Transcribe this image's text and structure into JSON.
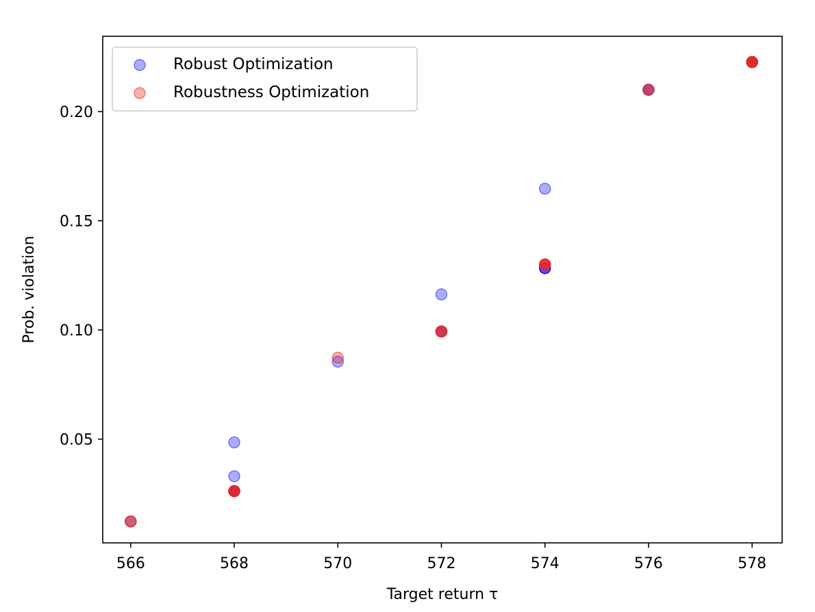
{
  "chart_data": {
    "type": "scatter",
    "xlabel": "Target return τ",
    "ylabel": "Prob. violation",
    "xlim": [
      565.46,
      578.58
    ],
    "ylim": [
      0.0025,
      0.2345
    ],
    "xticks": [
      566,
      568,
      570,
      572,
      574,
      576,
      578
    ],
    "xtick_labels": [
      "566",
      "568",
      "570",
      "572",
      "574",
      "576",
      "578"
    ],
    "yticks": [
      0.05,
      0.1,
      0.15,
      0.2
    ],
    "ytick_labels": [
      "0.05",
      "0.10",
      "0.15",
      "0.20"
    ],
    "grid": false,
    "legend_position": "upper-left",
    "series": [
      {
        "name": "Robust Optimization",
        "color": "#0000ff",
        "alpha": 0.32,
        "points": [
          {
            "x": 566,
            "y": 0.0123
          },
          {
            "x": 568,
            "y": 0.0485
          },
          {
            "x": 568,
            "y": 0.033
          },
          {
            "x": 568,
            "y": 0.0262
          },
          {
            "x": 568,
            "y": 0.0262
          },
          {
            "x": 568,
            "y": 0.0262
          },
          {
            "x": 570,
            "y": 0.0855
          },
          {
            "x": 572,
            "y": 0.1163
          },
          {
            "x": 572,
            "y": 0.0993
          },
          {
            "x": 572,
            "y": 0.0993
          },
          {
            "x": 574,
            "y": 0.1647
          },
          {
            "x": 574,
            "y": 0.1283
          },
          {
            "x": 574,
            "y": 0.1283
          },
          {
            "x": 574,
            "y": 0.1283
          },
          {
            "x": 576,
            "y": 0.21
          },
          {
            "x": 576,
            "y": 0.21
          },
          {
            "x": 578,
            "y": 0.2227
          },
          {
            "x": 578,
            "y": 0.2227
          }
        ]
      },
      {
        "name": "Robustness Optimization",
        "color": "#e8281e",
        "alpha": 0.36,
        "points": [
          {
            "x": 566,
            "y": 0.0123
          },
          {
            "x": 566,
            "y": 0.0123
          },
          {
            "x": 568,
            "y": 0.0262
          },
          {
            "x": 568,
            "y": 0.0262
          },
          {
            "x": 568,
            "y": 0.0262
          },
          {
            "x": 568,
            "y": 0.0262
          },
          {
            "x": 568,
            "y": 0.0262
          },
          {
            "x": 570,
            "y": 0.0873
          },
          {
            "x": 572,
            "y": 0.0993
          },
          {
            "x": 572,
            "y": 0.0993
          },
          {
            "x": 572,
            "y": 0.0993
          },
          {
            "x": 574,
            "y": 0.13
          },
          {
            "x": 574,
            "y": 0.13
          },
          {
            "x": 574,
            "y": 0.13
          },
          {
            "x": 574,
            "y": 0.13
          },
          {
            "x": 574,
            "y": 0.13
          },
          {
            "x": 576,
            "y": 0.21
          },
          {
            "x": 576,
            "y": 0.21
          },
          {
            "x": 578,
            "y": 0.2227
          },
          {
            "x": 578,
            "y": 0.2227
          },
          {
            "x": 578,
            "y": 0.2227
          },
          {
            "x": 578,
            "y": 0.2227
          },
          {
            "x": 578,
            "y": 0.2227
          },
          {
            "x": 578,
            "y": 0.2227
          }
        ]
      }
    ]
  }
}
